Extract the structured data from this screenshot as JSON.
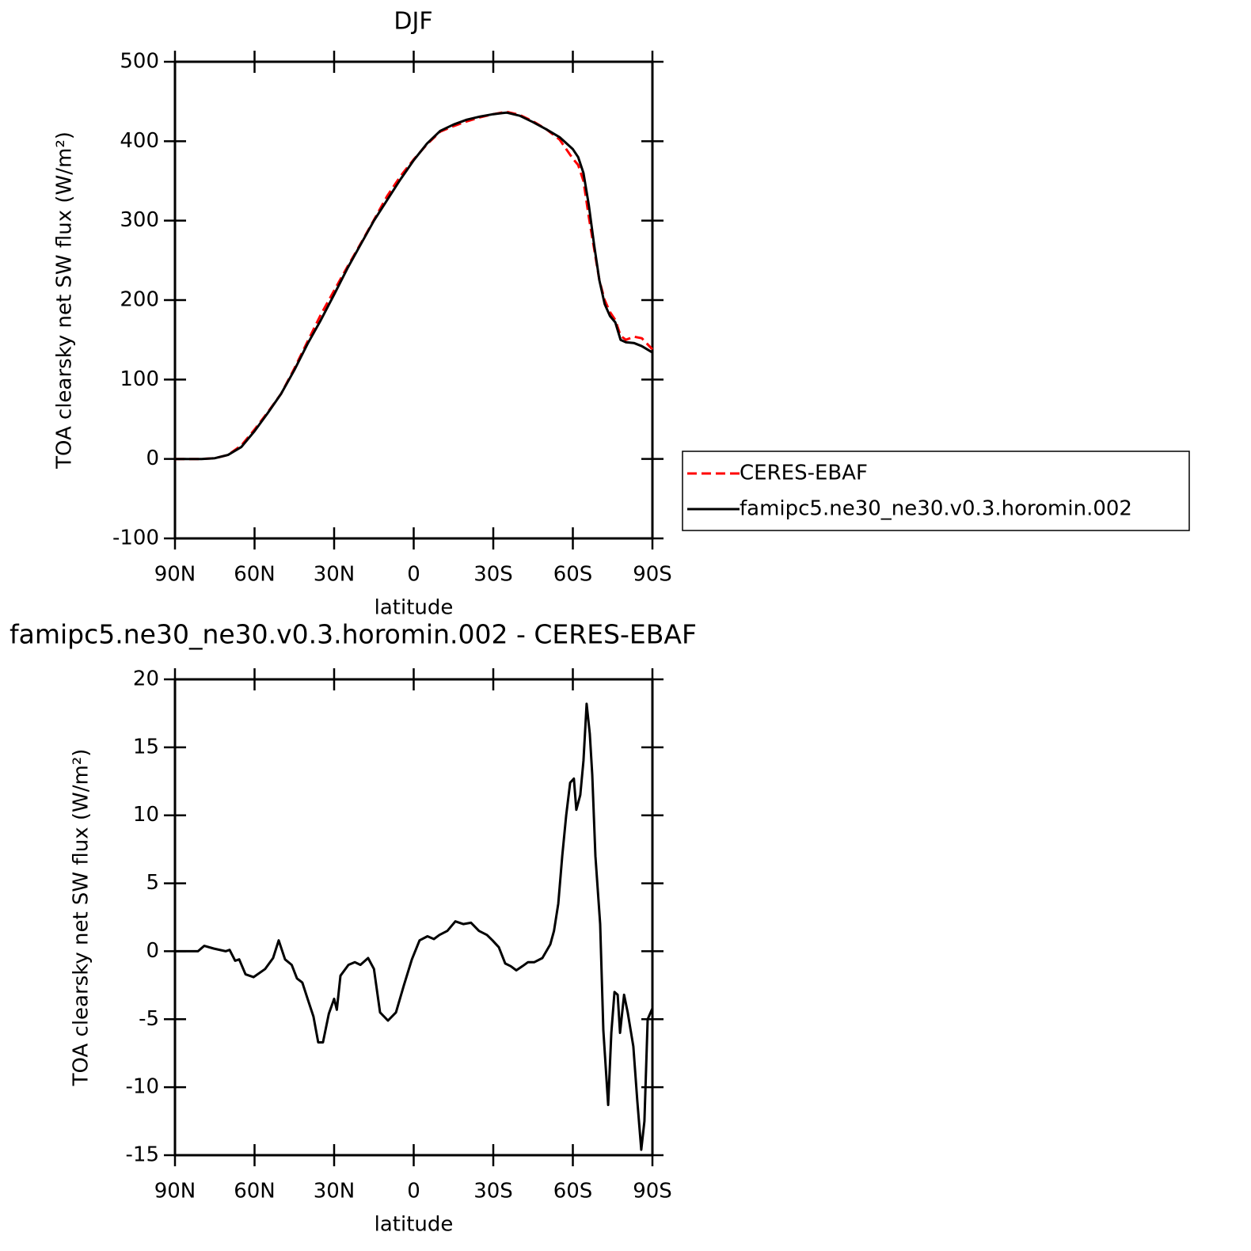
{
  "chart_data": [
    {
      "type": "line",
      "title": "DJF",
      "x_label": "latitude",
      "y_label": "TOA clearsky net SW flux (W/m²)",
      "x": [
        90,
        85,
        80,
        75,
        70,
        65,
        60,
        55,
        50,
        45,
        40,
        35,
        30,
        25,
        20,
        15,
        10,
        5,
        0,
        -5,
        -10,
        -15,
        -20,
        -25,
        -30,
        -35,
        -40,
        -45,
        -50,
        -55,
        -60,
        -62,
        -64,
        -66,
        -68,
        -70,
        -72,
        -74,
        -76,
        -78,
        -80,
        -83,
        -86,
        -90
      ],
      "series": [
        {
          "name": "CERES-EBAF",
          "color": "#ff0000",
          "line_style": "dashed",
          "values": [
            0,
            0,
            0,
            1,
            5,
            17,
            37,
            59,
            82,
            114,
            148,
            182,
            212,
            242,
            271,
            301,
            331,
            356,
            377,
            396,
            412,
            419,
            425,
            430,
            434,
            437,
            433,
            425,
            415,
            402,
            378,
            370,
            350,
            305,
            265,
            225,
            200,
            185,
            175,
            155,
            150,
            154,
            152,
            138
          ]
        },
        {
          "name": "famipc5.ne30_ne30.v0.3.horomin.002",
          "color": "#000000",
          "line_style": "solid",
          "values": [
            0,
            0,
            0,
            1,
            5,
            15,
            35,
            58,
            82,
            112,
            145,
            175,
            207,
            240,
            270,
            300,
            326,
            352,
            376,
            397,
            413,
            421,
            427,
            431,
            434,
            436,
            432,
            424,
            415,
            405,
            390,
            380,
            360,
            320,
            270,
            225,
            195,
            180,
            172,
            150,
            147,
            146,
            142,
            134
          ]
        }
      ],
      "xlim": [
        90,
        -90
      ],
      "xticks": [
        {
          "value": 90,
          "label": "90N"
        },
        {
          "value": 60,
          "label": "60N"
        },
        {
          "value": 30,
          "label": "30N"
        },
        0,
        {
          "value": -30,
          "label": "30S"
        },
        {
          "value": -60,
          "label": "60S"
        },
        {
          "value": -90,
          "label": "90S"
        }
      ],
      "ylim": [
        -100,
        500
      ],
      "yticks": [
        -100,
        0,
        100,
        200,
        300,
        400,
        500
      ],
      "grid": false,
      "legend": "right"
    },
    {
      "type": "line",
      "title": "famipc5.ne30_ne30.v0.3.horomin.002 - CERES-EBAF",
      "x_label": "latitude",
      "y_label": "TOA clearsky net SW flux (W/m²)",
      "x": [
        90,
        81.3,
        79,
        75.4,
        70.9,
        69.4,
        67.3,
        65.8,
        63.4,
        60.4,
        56,
        53,
        50.9,
        48.5,
        46,
        44,
        42,
        40,
        37.8,
        36,
        34.2,
        32,
        30,
        29,
        27.6,
        24.6,
        22.2,
        20.1,
        17.2,
        15,
        12.7,
        9.7,
        6.7,
        3.7,
        0.7,
        -2.2,
        -5.2,
        -7.6,
        -9.7,
        -12.7,
        -15.7,
        -18.7,
        -21.6,
        -24.6,
        -27.6,
        -29.7,
        -32.1,
        -34.5,
        -36.6,
        -38.7,
        -41,
        -43.1,
        -45.5,
        -48.5,
        -51.5,
        -52.9,
        -54.5,
        -56,
        -57.5,
        -59,
        -60.4,
        -61.3,
        -62.8,
        -64,
        -65.2,
        -66.4,
        -67.3,
        -68.5,
        -70.3,
        -71.5,
        -73.3,
        -74.5,
        -75.7,
        -76.9,
        -77.8,
        -79.3,
        -80.7,
        -82.8,
        -84.3,
        -85.8,
        -87,
        -88.2,
        -90
      ],
      "values": [
        0,
        0,
        0.4,
        0.2,
        0,
        0.1,
        -0.7,
        -0.6,
        -1.7,
        -1.9,
        -1.3,
        -0.5,
        0.8,
        -0.6,
        -1.0,
        -2.0,
        -2.3,
        -3.5,
        -4.8,
        -6.7,
        -6.7,
        -4.6,
        -3.5,
        -4.3,
        -1.8,
        -1.0,
        -0.8,
        -1.0,
        -0.5,
        -1.3,
        -4.5,
        -5.1,
        -4.5,
        -2.5,
        -0.6,
        0.8,
        1.1,
        0.9,
        1.2,
        1.5,
        2.2,
        2.0,
        2.1,
        1.5,
        1.2,
        0.8,
        0.3,
        -0.9,
        -1.1,
        -1.4,
        -1.1,
        -0.8,
        -0.8,
        -0.5,
        0.5,
        1.5,
        3.5,
        7,
        10,
        12.4,
        12.7,
        10.4,
        11.5,
        14,
        18.2,
        16,
        13,
        7,
        2,
        -5.8,
        -11.3,
        -6,
        -3,
        -3.2,
        -6,
        -3.2,
        -4.5,
        -7,
        -11,
        -14.6,
        -12.5,
        -5,
        -4.2
      ],
      "color": "#000000",
      "xlim": [
        90,
        -90
      ],
      "xticks": [
        {
          "value": 90,
          "label": "90N"
        },
        {
          "value": 60,
          "label": "60N"
        },
        {
          "value": 30,
          "label": "30N"
        },
        0,
        {
          "value": -30,
          "label": "30S"
        },
        {
          "value": -60,
          "label": "60S"
        },
        {
          "value": -90,
          "label": "90S"
        }
      ],
      "ylim": [
        -15,
        20
      ],
      "yticks": [
        -15,
        -10,
        -5,
        0,
        5,
        10,
        15,
        20
      ],
      "grid": false
    }
  ]
}
